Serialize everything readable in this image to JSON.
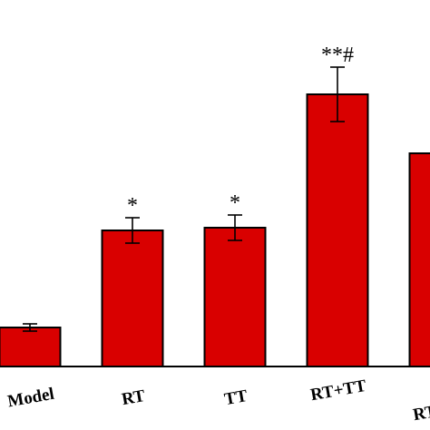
{
  "chart_data": {
    "type": "bar",
    "title": "",
    "xlabel": "",
    "ylabel": "",
    "categories": [
      "Model",
      "RT",
      "TT",
      "RT+TT",
      "RT+TT"
    ],
    "values": [
      0.43,
      1.5,
      1.53,
      3.0,
      2.35
    ],
    "errors": [
      0.04,
      0.14,
      0.14,
      0.3,
      0.0
    ],
    "annotations": [
      "",
      "*",
      "*",
      "**#",
      ""
    ],
    "bar_color": "#d90000",
    "edge_color": "#000000",
    "grid": false,
    "legend": "none"
  }
}
